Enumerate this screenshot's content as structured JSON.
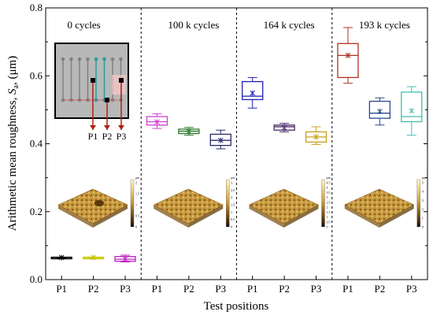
{
  "chart_data": {
    "type": "box",
    "ylabel_prefix": "Arithmetic mean roughness, ",
    "ylabel_symbol": "S",
    "ylabel_sub": "a",
    "ylabel_suffix": ", (μm)",
    "xlabel": "Test positions",
    "ylim": [
      0.0,
      0.8
    ],
    "yticks": [
      "0.0",
      "0.2",
      "0.4",
      "0.6",
      "0.8"
    ],
    "panels": [
      {
        "label": "0 cycles",
        "positions": [
          "P1",
          "P2",
          "P3"
        ],
        "boxes": [
          {
            "position": "P1",
            "color": "#000000",
            "min": 0.064,
            "q1": 0.064,
            "median": 0.065,
            "q3": 0.066,
            "max": 0.066,
            "mean": 0.065
          },
          {
            "position": "P2",
            "color": "#c8c800",
            "min": 0.064,
            "q1": 0.064,
            "median": 0.065,
            "q3": 0.066,
            "max": 0.066,
            "mean": 0.065
          },
          {
            "position": "P3",
            "color": "#c020c0",
            "min": 0.052,
            "q1": 0.054,
            "median": 0.06,
            "q3": 0.068,
            "max": 0.072,
            "mean": 0.061
          }
        ]
      },
      {
        "label": "100 k cycles",
        "positions": [
          "P1",
          "P2",
          "P3"
        ],
        "boxes": [
          {
            "position": "P1",
            "color": "#d040d0",
            "min": 0.445,
            "q1": 0.455,
            "median": 0.465,
            "q3": 0.48,
            "max": 0.488,
            "mean": 0.464
          },
          {
            "position": "P2",
            "color": "#2a7a2a",
            "min": 0.425,
            "q1": 0.43,
            "median": 0.437,
            "q3": 0.443,
            "max": 0.448,
            "mean": 0.436
          },
          {
            "position": "P3",
            "color": "#2a2a6a",
            "min": 0.385,
            "q1": 0.395,
            "median": 0.41,
            "q3": 0.428,
            "max": 0.44,
            "mean": 0.41
          }
        ]
      },
      {
        "label": "164 k cycles",
        "positions": [
          "P1",
          "P2",
          "P3"
        ],
        "boxes": [
          {
            "position": "P1",
            "color": "#2020b0",
            "min": 0.505,
            "q1": 0.53,
            "median": 0.54,
            "q3": 0.583,
            "max": 0.595,
            "mean": 0.549
          },
          {
            "position": "P2",
            "color": "#4a2a6a",
            "min": 0.435,
            "q1": 0.44,
            "median": 0.45,
            "q3": 0.455,
            "max": 0.46,
            "mean": 0.447
          },
          {
            "position": "P3",
            "color": "#c8a020",
            "min": 0.398,
            "q1": 0.405,
            "median": 0.42,
            "q3": 0.435,
            "max": 0.45,
            "mean": 0.42
          }
        ]
      },
      {
        "label": "193 k cycles",
        "positions": [
          "P1",
          "P2",
          "P3"
        ],
        "boxes": [
          {
            "position": "P1",
            "color": "#b03020",
            "min": 0.578,
            "q1": 0.595,
            "median": 0.66,
            "q3": 0.695,
            "max": 0.742,
            "mean": 0.66
          },
          {
            "position": "P2",
            "color": "#2a4a90",
            "min": 0.455,
            "q1": 0.475,
            "median": 0.49,
            "q3": 0.525,
            "max": 0.535,
            "mean": 0.495
          },
          {
            "position": "P3",
            "color": "#40c0b0",
            "min": 0.425,
            "q1": 0.465,
            "median": 0.48,
            "q3": 0.552,
            "max": 0.568,
            "mean": 0.497
          }
        ]
      }
    ],
    "inset": {
      "labels": [
        "P1",
        "P2",
        "P3"
      ],
      "colors": {
        "probe": "#b02010",
        "lines": "#808080",
        "cyan": "#20a0a0",
        "pad": "#000000"
      }
    },
    "afm_colorbars": [
      {
        "unit": "μm",
        "ticks": [
          "2",
          "1.5",
          "1",
          "0.5",
          "0"
        ]
      },
      {
        "unit": "μm",
        "ticks": [
          "3",
          "2.5",
          "2",
          "1.5",
          "1",
          "0.5",
          "0"
        ]
      },
      {
        "unit": "μm",
        "ticks": [
          "4.5",
          "4",
          "3.5",
          "3",
          "2.5",
          "2",
          "1.5",
          "1",
          "0.5",
          "0"
        ]
      },
      {
        "unit": "μm",
        "ticks": [
          "5",
          "4",
          "3",
          "2",
          "1",
          "0"
        ]
      }
    ]
  }
}
